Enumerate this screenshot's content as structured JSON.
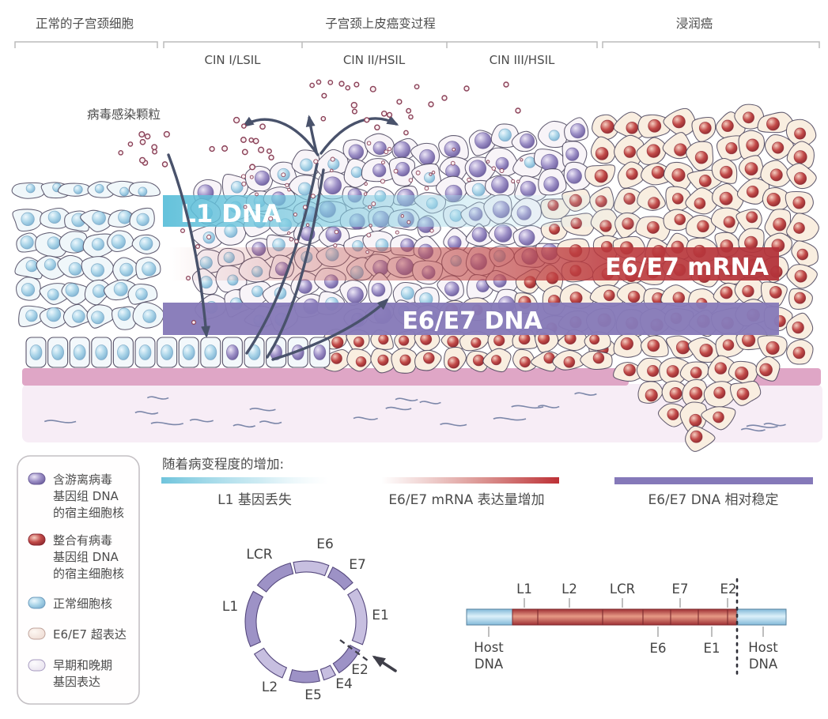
{
  "header": {
    "left_label": "正常的子宫颈细胞",
    "middle_label": "子宫颈上皮癌变过程",
    "right_label": "浸润癌",
    "stages": [
      "CIN I/LSIL",
      "CIN II/HSIL",
      "CIN III/HSIL"
    ]
  },
  "annotations": {
    "virus_particles_label": "病毒感染颗粒"
  },
  "bands": {
    "l1_dna": {
      "label": "L1 DNA",
      "color": "#5fc0da"
    },
    "e6e7_mrna": {
      "label": "E6/E7 mRNA",
      "color": "#bc3a3e"
    },
    "e6e7_dna": {
      "label": "E6/E7 DNA",
      "color": "#867ab8"
    }
  },
  "legend": {
    "items": [
      {
        "swatch": "episomal-nucleus",
        "color": "#a79bce",
        "lines": [
          "含游离病毒",
          "基因组 DNA",
          "的宿主细胞核"
        ]
      },
      {
        "swatch": "integrated-nucleus",
        "color": "#c14b4b",
        "lines": [
          "整合有病毒",
          "基因组 DNA",
          "的宿主细胞核"
        ]
      },
      {
        "swatch": "normal-nucleus",
        "color": "#a9d4e8",
        "lines": [
          "正常细胞核"
        ]
      },
      {
        "swatch": "e6e7-overexpression",
        "color": "#f6e9e2",
        "lines": [
          "E6/E7 超表达"
        ]
      },
      {
        "swatch": "early-late-gene-expression",
        "color": "#f3eff6",
        "lines": [
          "早期和晚期",
          "基因表达"
        ]
      }
    ]
  },
  "trend": {
    "title": "随着病变程度的增加:",
    "items": [
      {
        "label": "L1 基因丢失",
        "bar": "blue-fade"
      },
      {
        "label": "E6/E7 mRNA 表达量增加",
        "bar": "red-rise"
      },
      {
        "label": "E6/E7 DNA 相对稳定",
        "bar": "purple-solid"
      }
    ]
  },
  "circular_genome": {
    "segments": [
      {
        "label": "LCR",
        "start": -53,
        "end": -15
      },
      {
        "label": "E6",
        "start": -12,
        "end": 22
      },
      {
        "label": "E7",
        "start": 26,
        "end": 50
      },
      {
        "label": "E1",
        "start": 57,
        "end": 112
      },
      {
        "label": "E2",
        "start": 118,
        "end": 147
      },
      {
        "label": "E4",
        "start": 151,
        "end": 163
      },
      {
        "label": "E5",
        "start": 167,
        "end": 196
      },
      {
        "label": "L2",
        "start": 203,
        "end": 238
      },
      {
        "label": "L1",
        "start": 246,
        "end": 300
      }
    ]
  },
  "linear_genome": {
    "top_labels": [
      "L1",
      "L2",
      "LCR",
      "E7",
      "E2"
    ],
    "bottom_labels": [
      "E6",
      "E1"
    ],
    "host_left_lines": [
      "Host",
      "DNA"
    ],
    "host_right_lines": [
      "Host",
      "DNA"
    ]
  },
  "colors": {
    "text": "#4c4c4c",
    "bracket": "#bcbcbc",
    "arrow": "#49526b",
    "membrane": "#dfa6c6",
    "stroma": "#f7edf6",
    "stroma_fiber": "#5c6d96",
    "normal_cell": "#f0f7fa",
    "cin_cell": "#f8f4f8",
    "cancer_cell": "#f9eee0",
    "normal_nucleus": "#a9d4e8",
    "episomal_nucleus": "#9a8bc4",
    "integrated_nucleus": "#bf4348",
    "virus_particle": "#8a4158",
    "ring_light": "#c7bfe0",
    "ring_dark": "#9d92c6",
    "host_dna_segment": "#bfe0f2",
    "viral_dna_segment": "#c9534a"
  }
}
